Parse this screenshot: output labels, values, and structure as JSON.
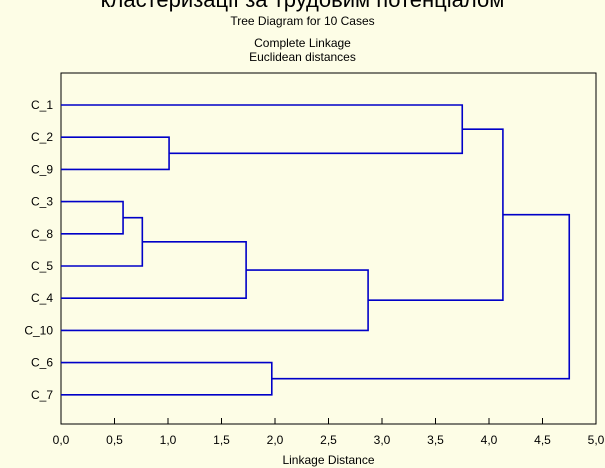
{
  "page": {
    "cropped_heading": "кластеризації за трудовим потенціалом"
  },
  "chart_data": {
    "type": "dendrogram",
    "title": "Tree Diagram for 10 Cases",
    "subtitle": [
      "Complete Linkage",
      "Euclidean distances"
    ],
    "xlabel": "Linkage Distance",
    "ylabel": "",
    "xlim": [
      0,
      5
    ],
    "x_ticks": [
      0,
      0.5,
      1,
      1.5,
      2,
      2.5,
      3,
      3.5,
      4,
      4.5,
      5
    ],
    "x_tick_labels": [
      "0,0",
      "0,5",
      "1,0",
      "1,5",
      "2,0",
      "2,5",
      "3,0",
      "3,5",
      "4,0",
      "4,5",
      "5,0"
    ],
    "leaves": [
      "C_1",
      "C_2",
      "C_9",
      "C_3",
      "C_8",
      "C_5",
      "C_4",
      "C_10",
      "C_6",
      "C_7"
    ],
    "merges": [
      {
        "a": "C_3",
        "b": "C_8",
        "distance": 0.58
      },
      {
        "a": "C_3+C_8",
        "b": "C_5",
        "distance": 0.76
      },
      {
        "a": "C_2",
        "b": "C_9",
        "distance": 1.01
      },
      {
        "a": "C_3+C_8+C_5",
        "b": "C_4",
        "distance": 1.73
      },
      {
        "a": "C_6",
        "b": "C_7",
        "distance": 1.97
      },
      {
        "a": "C_3+C_8+C_5+C_4",
        "b": "C_10",
        "distance": 2.87
      },
      {
        "a": "C_1",
        "b": "C_2+C_9",
        "distance": 3.75
      },
      {
        "a": "C_1+C_2+C_9",
        "b": "C_3+C_8+C_5+C_4+C_10",
        "distance": 4.13
      },
      {
        "a": "C_1+C_2+C_9+C_3+C_8+C_5+C_4+C_10",
        "b": "C_6+C_7",
        "distance": 4.75
      }
    ],
    "grid": false,
    "line_color": "#0000c8",
    "background_color": "#fdfde6"
  }
}
